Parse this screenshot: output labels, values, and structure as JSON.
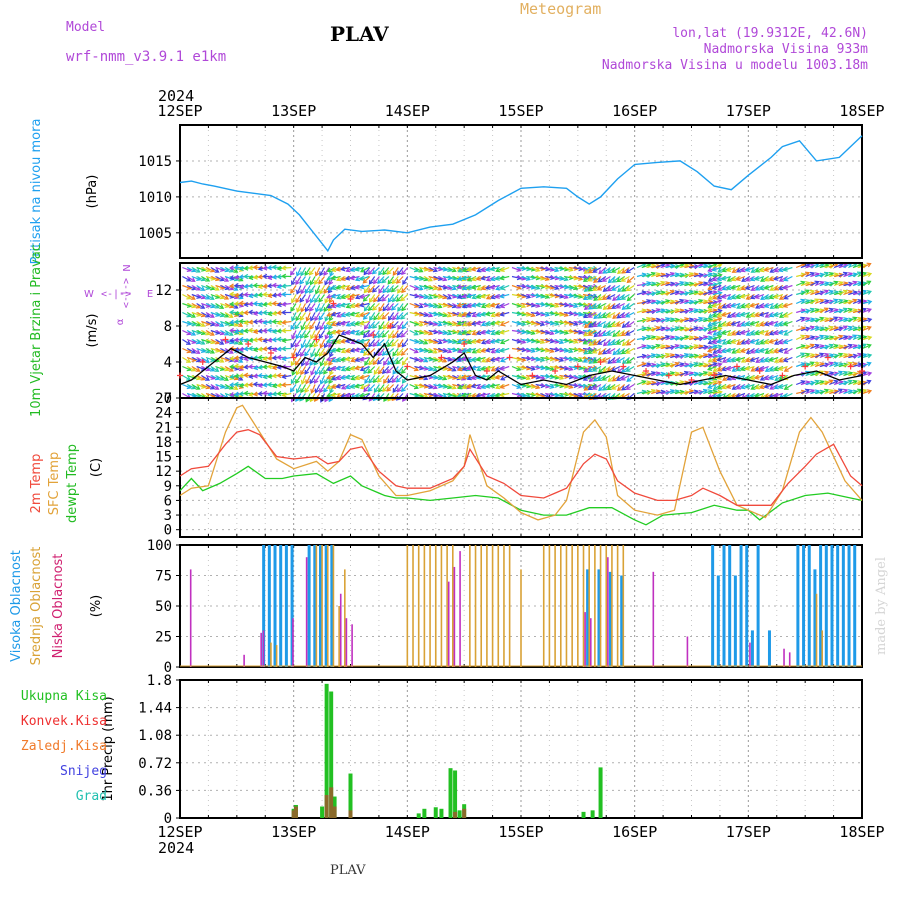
{
  "header": {
    "model_label": "Model",
    "model_name": "wrf-nmm_v3.9.1  e1km",
    "station": "PLAV",
    "product": "Meteogram",
    "coords": "lon,lat (19.9312E, 42.6N)",
    "elevation": "Nadmorska Visina 933m",
    "model_elevation": "Nadmorska Visina u modelu 1003.18m"
  },
  "time_axis": {
    "year": "2024",
    "labels": [
      "12SEP",
      "13SEP",
      "14SEP",
      "15SEP",
      "16SEP",
      "17SEP",
      "18SEP"
    ],
    "start_day": 12,
    "end_day": 18
  },
  "footer_label": "PLAV",
  "watermark": "made by Angel",
  "colors": {
    "pressure": "#1ea0f0",
    "wind_speed": "#000000",
    "gust": "#ff3a3a",
    "temp2m": "#f04a3c",
    "sfc_temp": "#e2a33a",
    "dewpt": "#22cc22",
    "cloud_high": "#1e9ae8",
    "cloud_mid": "#d9a236",
    "cloud_low": "#c030c0",
    "precip_total": "#22c022",
    "precip_conv": "#ee3030",
    "precip_frozen": "#f07a2a",
    "snow": "#4040e0",
    "graupel": "#22c0b0"
  },
  "chart_data": [
    {
      "type": "line",
      "panel": "pressure",
      "ylabel": "Pritisak na nivou mora",
      "unit": "(hPa)",
      "ylim": [
        1001.5,
        1020.0
      ],
      "yticks": [
        1005,
        1010,
        1015
      ],
      "grid": true,
      "series": [
        {
          "name": "Pritisak na nivou mora",
          "color": "#1ea0f0",
          "x": [
            12.0,
            12.1,
            12.2,
            12.3,
            12.5,
            12.65,
            12.8,
            12.95,
            13.05,
            13.15,
            13.25,
            13.3,
            13.35,
            13.45,
            13.6,
            13.8,
            14.0,
            14.2,
            14.4,
            14.6,
            14.8,
            15.0,
            15.2,
            15.4,
            15.5,
            15.6,
            15.7,
            15.85,
            16.0,
            16.2,
            16.4,
            16.55,
            16.7,
            16.85,
            17.0,
            17.2,
            17.3,
            17.45,
            17.6,
            17.8,
            18.0
          ],
          "y": [
            1012.0,
            1012.2,
            1011.8,
            1011.5,
            1010.8,
            1010.5,
            1010.2,
            1009.0,
            1007.5,
            1005.5,
            1003.5,
            1002.5,
            1004.0,
            1005.5,
            1005.2,
            1005.4,
            1005.0,
            1005.8,
            1006.2,
            1007.5,
            1009.5,
            1011.2,
            1011.4,
            1011.2,
            1010.0,
            1009.0,
            1010.0,
            1012.5,
            1014.5,
            1014.8,
            1015.0,
            1013.5,
            1011.5,
            1011.0,
            1013.0,
            1015.5,
            1017.0,
            1017.8,
            1015.0,
            1015.5,
            1018.5
          ]
        }
      ]
    },
    {
      "type": "line",
      "panel": "wind",
      "ylabel": "10m Vjetar Brzina i Pravac",
      "unit": "(m/s)",
      "ylim": [
        0,
        15
      ],
      "yticks": [
        0,
        4,
        8,
        12
      ],
      "grid": true,
      "compass": [
        "N",
        "E",
        "S",
        "W"
      ],
      "series": [
        {
          "name": "Brzina",
          "color": "#000000",
          "x": [
            12.0,
            12.1,
            12.25,
            12.45,
            12.6,
            12.75,
            12.9,
            13.0,
            13.1,
            13.2,
            13.3,
            13.4,
            13.5,
            13.6,
            13.7,
            13.8,
            13.9,
            14.0,
            14.2,
            14.4,
            14.5,
            14.6,
            14.7,
            14.8,
            15.0,
            15.2,
            15.4,
            15.6,
            15.8,
            16.0,
            16.2,
            16.4,
            16.6,
            16.8,
            17.0,
            17.2,
            17.4,
            17.6,
            17.8,
            18.0
          ],
          "y": [
            1.5,
            2.0,
            3.5,
            5.5,
            4.5,
            4.0,
            3.5,
            3.0,
            4.5,
            4.0,
            5.0,
            7.0,
            6.5,
            6.0,
            4.5,
            6.0,
            3.0,
            2.0,
            2.5,
            4.0,
            5.0,
            2.5,
            2.0,
            3.0,
            1.5,
            2.0,
            1.5,
            2.5,
            3.0,
            2.5,
            2.0,
            1.5,
            2.0,
            2.5,
            2.0,
            1.5,
            2.5,
            3.0,
            2.0,
            2.5
          ]
        },
        {
          "name": "Udari",
          "color": "#ff3a3a",
          "x": [
            12.0,
            12.2,
            12.4,
            12.6,
            12.8,
            13.0,
            13.2,
            13.35,
            13.5,
            13.7,
            13.85,
            14.0,
            14.3,
            14.5,
            14.7,
            14.9,
            15.1,
            15.3,
            15.5,
            15.7,
            15.9,
            16.1,
            16.3,
            16.5,
            16.7,
            16.9,
            17.1,
            17.3,
            17.5,
            17.7,
            17.9,
            18.0
          ],
          "y": [
            2.5,
            4.0,
            6.5,
            6.0,
            5.0,
            4.5,
            6.5,
            10.5,
            11.0,
            7.0,
            8.0,
            3.5,
            4.5,
            6.0,
            3.0,
            4.5,
            2.5,
            3.0,
            3.5,
            4.0,
            3.5,
            3.0,
            2.5,
            2.0,
            2.5,
            3.5,
            3.0,
            2.5,
            3.5,
            4.5,
            3.5,
            3.0
          ]
        }
      ],
      "barbs": {
        "segments": [
          {
            "from": 12.0,
            "to": 12.5,
            "angle": -25
          },
          {
            "from": 12.5,
            "to": 13.0,
            "angle": 185
          },
          {
            "from": 13.0,
            "to": 13.35,
            "angle": 240
          },
          {
            "from": 13.35,
            "to": 13.65,
            "angle": 200
          },
          {
            "from": 13.65,
            "to": 14.0,
            "angle": 230
          },
          {
            "from": 14.0,
            "to": 14.5,
            "angle": -20
          },
          {
            "from": 14.5,
            "to": 14.9,
            "angle": 200
          },
          {
            "from": 14.9,
            "to": 15.6,
            "angle": -15
          },
          {
            "from": 15.6,
            "to": 16.0,
            "angle": 215
          },
          {
            "from": 16.0,
            "to": 16.7,
            "angle": 15
          },
          {
            "from": 16.7,
            "to": 17.4,
            "angle": 205
          },
          {
            "from": 17.4,
            "to": 18.0,
            "angle": 20
          }
        ],
        "palette": [
          "#4040e0",
          "#a040e0",
          "#1eb0e8",
          "#22c8b0",
          "#30d040",
          "#d8d820",
          "#f08020"
        ]
      }
    },
    {
      "type": "line",
      "panel": "temperature",
      "ylabel": [
        "2m Temp",
        "SFC Temp",
        "dewpt Temp"
      ],
      "unit": "(C)",
      "ylim": [
        -1.5,
        27.0
      ],
      "yticks": [
        0,
        3,
        6,
        9,
        12,
        15,
        18,
        21,
        24,
        27
      ],
      "grid": true,
      "series": [
        {
          "name": "2m Temp",
          "color": "#f04a3c",
          "x": [
            12.0,
            12.1,
            12.25,
            12.4,
            12.5,
            12.6,
            12.7,
            12.85,
            13.0,
            13.2,
            13.3,
            13.4,
            13.5,
            13.6,
            13.75,
            13.9,
            14.0,
            14.2,
            14.4,
            14.5,
            14.55,
            14.7,
            14.85,
            15.0,
            15.2,
            15.3,
            15.4,
            15.55,
            15.65,
            15.75,
            15.85,
            16.0,
            16.2,
            16.35,
            16.5,
            16.6,
            16.75,
            16.9,
            17.0,
            17.2,
            17.35,
            17.5,
            17.6,
            17.75,
            17.9,
            18.0
          ],
          "y": [
            11.0,
            12.5,
            13.0,
            17.5,
            20.0,
            20.5,
            19.5,
            15.0,
            14.5,
            15.0,
            13.5,
            14.0,
            16.5,
            17.0,
            12.0,
            9.0,
            8.5,
            8.5,
            10.5,
            13.0,
            16.5,
            11.0,
            9.5,
            7.0,
            6.5,
            7.5,
            8.5,
            13.5,
            15.5,
            14.5,
            10.0,
            7.5,
            6.0,
            6.0,
            7.0,
            8.5,
            7.0,
            5.0,
            5.0,
            5.0,
            9.5,
            13.0,
            15.5,
            17.5,
            11.0,
            9.0
          ]
        },
        {
          "name": "SFC Temp",
          "color": "#e2a33a",
          "x": [
            12.0,
            12.1,
            12.25,
            12.4,
            12.5,
            12.55,
            12.7,
            12.85,
            13.0,
            13.2,
            13.3,
            13.4,
            13.5,
            13.6,
            13.75,
            13.9,
            14.0,
            14.2,
            14.4,
            14.5,
            14.55,
            14.7,
            14.85,
            15.0,
            15.15,
            15.3,
            15.4,
            15.55,
            15.65,
            15.75,
            15.85,
            16.0,
            16.2,
            16.35,
            16.5,
            16.6,
            16.75,
            16.9,
            17.0,
            17.15,
            17.3,
            17.45,
            17.55,
            17.65,
            17.85,
            18.0
          ],
          "y": [
            7.0,
            8.5,
            9.0,
            20.0,
            25.0,
            25.5,
            20.0,
            14.5,
            12.5,
            14.0,
            12.0,
            14.0,
            19.5,
            18.5,
            11.0,
            7.0,
            7.0,
            8.0,
            10.0,
            13.0,
            19.5,
            9.0,
            6.5,
            3.5,
            2.0,
            3.0,
            6.0,
            20.0,
            22.5,
            19.0,
            7.0,
            4.0,
            3.0,
            4.0,
            20.0,
            21.0,
            12.0,
            5.0,
            4.0,
            2.5,
            8.0,
            20.0,
            23.0,
            20.0,
            10.0,
            6.0
          ]
        },
        {
          "name": "dewpt Temp",
          "color": "#22cc22",
          "x": [
            12.0,
            12.1,
            12.2,
            12.35,
            12.5,
            12.6,
            12.75,
            12.9,
            13.0,
            13.2,
            13.35,
            13.5,
            13.6,
            13.8,
            13.9,
            14.0,
            14.2,
            14.4,
            14.6,
            14.8,
            15.0,
            15.2,
            15.4,
            15.6,
            15.8,
            16.0,
            16.1,
            16.25,
            16.5,
            16.7,
            16.9,
            17.0,
            17.1,
            17.3,
            17.5,
            17.7,
            17.9,
            18.0
          ],
          "y": [
            8.0,
            10.5,
            8.0,
            9.5,
            11.5,
            13.0,
            10.5,
            10.5,
            11.0,
            11.5,
            9.5,
            11.0,
            9.0,
            7.0,
            6.5,
            6.5,
            6.0,
            6.5,
            7.0,
            6.5,
            4.0,
            3.0,
            3.0,
            4.5,
            4.5,
            2.0,
            1.0,
            3.0,
            3.5,
            5.0,
            4.0,
            4.0,
            2.0,
            5.5,
            7.0,
            7.5,
            6.5,
            6.0
          ]
        }
      ]
    },
    {
      "type": "bar",
      "panel": "cloud",
      "ylabel": [
        "Visoka Oblacnost",
        "Srednja Oblacnost",
        "Niska Oblacnost"
      ],
      "unit": "(%)",
      "ylim": [
        0,
        100
      ],
      "yticks": [
        0,
        25,
        50,
        75,
        100
      ],
      "grid": true,
      "series": [
        {
          "name": "Visoka Oblacnost",
          "color": "#1e9ae8",
          "x": [
            12.75,
            12.8,
            12.85,
            12.9,
            12.95,
            13.0,
            13.15,
            13.2,
            13.25,
            13.3,
            13.35,
            15.6,
            15.7,
            15.8,
            15.9,
            16.7,
            16.75,
            16.8,
            16.85,
            16.9,
            16.95,
            17.0,
            17.05,
            17.1,
            17.2,
            17.45,
            17.5,
            17.55,
            17.6,
            17.65,
            17.7,
            17.75,
            17.8,
            17.85,
            17.9,
            17.95
          ],
          "values": [
            100,
            100,
            100,
            100,
            100,
            100,
            100,
            100,
            100,
            100,
            100,
            80,
            80,
            78,
            75,
            100,
            75,
            100,
            100,
            75,
            100,
            100,
            30,
            100,
            30,
            100,
            100,
            100,
            80,
            100,
            100,
            100,
            100,
            100,
            100,
            100
          ]
        },
        {
          "name": "Srednja Oblacnost",
          "color": "#d9a236",
          "x": [
            12.8,
            12.85,
            13.2,
            13.25,
            13.3,
            13.35,
            13.4,
            13.45,
            14.0,
            14.05,
            14.1,
            14.15,
            14.2,
            14.25,
            14.3,
            14.35,
            14.4,
            14.55,
            14.6,
            14.65,
            14.7,
            14.75,
            14.8,
            14.85,
            14.9,
            15.0,
            15.2,
            15.25,
            15.3,
            15.35,
            15.4,
            15.45,
            15.5,
            15.55,
            15.6,
            15.65,
            15.7,
            15.75,
            15.8,
            15.85,
            15.9,
            17.6,
            17.65
          ],
          "values": [
            20,
            18,
            100,
            100,
            100,
            100,
            50,
            80,
            100,
            100,
            100,
            100,
            100,
            100,
            100,
            100,
            100,
            100,
            100,
            100,
            100,
            100,
            100,
            100,
            100,
            80,
            100,
            100,
            100,
            100,
            100,
            100,
            100,
            100,
            100,
            100,
            100,
            100,
            100,
            100,
            100,
            60,
            30
          ]
        },
        {
          "name": "Niska Oblacnost",
          "color": "#c030c0",
          "x": [
            12.08,
            12.55,
            12.7,
            12.72,
            12.98,
            13.1,
            13.4,
            13.45,
            13.5,
            14.35,
            14.4,
            14.45,
            15.55,
            15.6,
            15.75,
            16.15,
            16.45,
            17.0,
            17.3,
            17.35
          ],
          "values": [
            80,
            10,
            28,
            30,
            40,
            90,
            60,
            40,
            35,
            70,
            82,
            95,
            45,
            40,
            90,
            78,
            25,
            20,
            15,
            12
          ]
        }
      ]
    },
    {
      "type": "bar",
      "panel": "precip",
      "ylabel": "1hr Precip",
      "unit": "(mm)",
      "ylim": [
        0,
        1.8
      ],
      "yticks": [
        0,
        0.36,
        0.72,
        1.08,
        1.44,
        1.8
      ],
      "grid": true,
      "legend": [
        "Ukupna Kisa",
        "Konvek.Kisa",
        "Zaledj.Kisa",
        "Snijeg",
        "Grad"
      ],
      "series": [
        {
          "name": "Ukupna Kisa",
          "color": "#22c022",
          "x": [
            13.0,
            13.02,
            13.25,
            13.29,
            13.33,
            13.36,
            13.5,
            14.1,
            14.15,
            14.25,
            14.3,
            14.38,
            14.42,
            14.46,
            14.5,
            15.55,
            15.63,
            15.7
          ],
          "values": [
            0.12,
            0.17,
            0.15,
            1.75,
            1.65,
            0.28,
            0.58,
            0.06,
            0.12,
            0.14,
            0.12,
            0.65,
            0.62,
            0.1,
            0.18,
            0.08,
            0.1,
            0.66
          ]
        },
        {
          "name": "Konvek.Kisa",
          "color": "#ee3030",
          "x": [
            13.0,
            13.02,
            13.29,
            13.33,
            13.36,
            13.5,
            14.42,
            14.5
          ],
          "values": [
            0.1,
            0.15,
            0.3,
            0.4,
            0.15,
            0.1,
            0.08,
            0.12
          ]
        },
        {
          "name": "Zaledj.Kisa",
          "color": "#f07a2a",
          "x": [],
          "values": []
        },
        {
          "name": "Snijeg",
          "color": "#4040e0",
          "x": [],
          "values": []
        },
        {
          "name": "Grad",
          "color": "#22c0b0",
          "x": [],
          "values": []
        }
      ]
    }
  ]
}
